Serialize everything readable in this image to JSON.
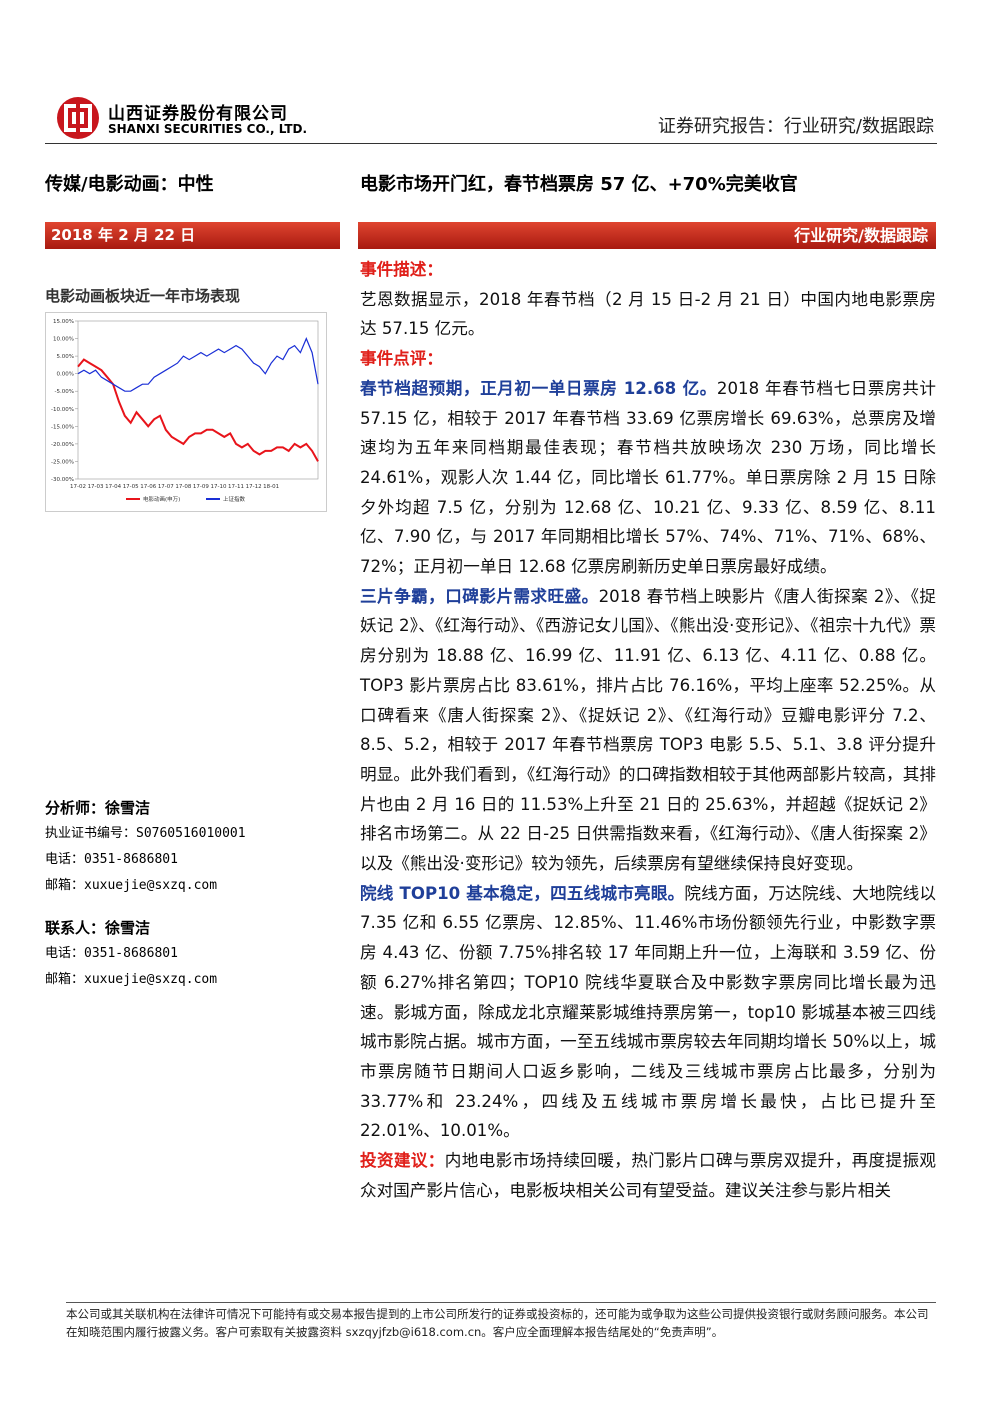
{
  "header": {
    "company_cn": "山西证券股份有限公司",
    "company_en": "SHANXI SECURITIES CO., LTD.",
    "report_type": "证券研究报告：行业研究/数据跟踪"
  },
  "title_row": {
    "sector": "传媒/电影动画：中性",
    "headline": "电影市场开门红，春节档票房 57 亿、+70%完美收官"
  },
  "band": {
    "date": "2018 年 2 月 22 日",
    "tag": "行业研究/数据跟踪"
  },
  "sidebar": {
    "chart_title": "电影动画板块近一年市场表现",
    "analyst": {
      "label": "分析师：徐雪洁",
      "cert": "执业证书编号：S0760516010001",
      "phone": "电话：0351-8686801",
      "email": "邮箱：xuxuejie@sxzq.com"
    },
    "contact": {
      "label": "联系人：徐雪洁",
      "phone": "电话：0351-8686801",
      "email": "邮箱：xuxuejie@sxzq.com"
    }
  },
  "chart_data": {
    "type": "line",
    "categories": [
      "17-02",
      null,
      null,
      "17-03",
      null,
      null,
      "17-04",
      null,
      null,
      "17-05",
      null,
      null,
      "17-06",
      null,
      null,
      "17-07",
      null,
      null,
      "17-08",
      null,
      null,
      "17-09",
      null,
      null,
      "17-10",
      null,
      null,
      "17-11",
      null,
      null,
      "17-12",
      null,
      null,
      "18-01",
      null,
      null,
      null,
      null,
      null,
      null,
      null,
      null
    ],
    "series": [
      {
        "name": "电影动画(申万)",
        "color": "#e8141b",
        "values": [
          2,
          4,
          3,
          2,
          1,
          -1,
          -3,
          -8,
          -12,
          -14,
          -11,
          -13,
          -15,
          -13,
          -12,
          -16,
          -18,
          -19,
          -20,
          -18,
          -17,
          -17,
          -16,
          -16,
          -17,
          -18,
          -17,
          -20,
          -21,
          -20,
          -22,
          -23,
          -22,
          -22,
          -21,
          -21,
          -22,
          -20,
          -21,
          -20,
          -22,
          -25
        ]
      },
      {
        "name": "上证指数",
        "color": "#1a2fd6",
        "values": [
          0,
          1,
          0,
          1,
          -1,
          -2,
          -3,
          -4,
          -5,
          -5,
          -4,
          -3,
          -3,
          -1,
          0,
          1,
          2,
          3,
          5,
          4,
          5,
          6,
          5,
          6,
          7,
          6,
          7,
          8,
          7,
          5,
          3,
          2,
          0,
          3,
          5,
          4,
          7,
          8,
          6,
          10,
          6,
          -3
        ]
      }
    ],
    "ylim": [
      -30,
      15
    ],
    "yticks": [
      {
        "value": -30,
        "label": "-30.00%"
      },
      {
        "value": -25,
        "label": "-25.00%"
      },
      {
        "value": -20,
        "label": "-20.00%"
      },
      {
        "value": -15,
        "label": "-15.00%"
      },
      {
        "value": -10,
        "label": "-10.00%"
      },
      {
        "value": -5,
        "label": "-5.00%"
      },
      {
        "value": 0,
        "label": "0.00%"
      },
      {
        "value": 5,
        "label": "5.00%"
      },
      {
        "value": 10,
        "label": "10.00%"
      },
      {
        "value": 15,
        "label": "15.00%"
      }
    ]
  },
  "body": {
    "event_heading": "事件描述：",
    "event_text": "艺恩数据显示，2018 年春节档（2 月 15 日-2 月 21 日）中国内地电影票房达 57.15 亿元。",
    "review_heading": "事件点评：",
    "paragraphs": [
      {
        "lead": "春节档超预期，正月初一单日票房 12.68 亿。",
        "text": "2018 年春节档七日票房共计 57.15 亿，相较于 2017 年春节档 33.69 亿票房增长 69.63%，总票房及增速均为五年来同档期最佳表现；春节档共放映场次 230 万场，同比增长 24.61%，观影人次 1.44 亿，同比增长 61.77%。单日票房除 2 月 15 日除夕外均超 7.5 亿，分别为 12.68 亿、10.21 亿、9.33 亿、8.59 亿、8.11 亿、7.90 亿，与 2017 年同期相比增长 57%、74%、71%、71%、68%、72%；正月初一单日 12.68 亿票房刷新历史单日票房最好成绩。"
      },
      {
        "lead": "三片争霸，口碑影片需求旺盛。",
        "text": "2018 春节档上映影片《唐人街探案 2》、《捉妖记 2》、《红海行动》、《西游记女儿国》、《熊出没·变形记》、《祖宗十九代》票房分别为 18.88 亿、16.99 亿、11.91 亿、6.13 亿、4.11 亿、0.88 亿。TOP3 影片票房占比 83.61%，排片占比 76.16%，平均上座率 52.25%。从口碑看来《唐人街探案 2》、《捉妖记 2》、《红海行动》豆瓣电影评分 7.2、8.5、5.2，相较于 2017 年春节档票房 TOP3 电影 5.5、5.1、3.8 评分提升明显。此外我们看到，《红海行动》的口碑指数相较于其他两部影片较高，其排片也由 2 月 16 日的 11.53%上升至 21 日的 25.63%，并超越《捉妖记 2》排名市场第二。从 22 日-25 日供需指数来看，《红海行动》、《唐人街探案 2》以及《熊出没·变形记》较为领先，后续票房有望继续保持良好变现。"
      },
      {
        "lead": "院线 TOP10 基本稳定，四五线城市亮眼。",
        "text": "院线方面，万达院线、大地院线以 7.35 亿和 6.55 亿票房、12.85%、11.46%市场份额领先行业，中影数字票房 4.43 亿、份额 7.75%排名较 17 年同期上升一位，上海联和 3.59 亿、份额 6.27%排名第四；TOP10 院线华夏联合及中影数字票房同比增长最为迅速。影城方面，除成龙北京耀莱影城维持票房第一，top10 影城基本被三四线城市影院占据。城市方面，一至五线城市票房较去年同期均增长 50%以上，城市票房随节日期间人口返乡影响，二线及三线城市票房占比最多，分别为 33.77%和 23.24%，四线及五线城市票房增长最快，占比已提升至 22.01%、10.01%。"
      }
    ],
    "advice_lead": "投资建议：",
    "advice_text": "内地电影市场持续回暖，热门影片口碑与票房双提升，再度提振观众对国产影片信心，电影板块相关公司有望受益。建议关注参与影片相关"
  },
  "footer": "本公司或其关联机构在法律许可情况下可能持有或交易本报告提到的上市公司所发行的证券或投资标的，还可能为或争取为这些公司提供投资银行或财务顾问服务。本公司在知晓范围内履行披露义务。客户可索取有关披露资料 sxzqyjfzb@i618.com.cn。客户应全面理解本报告结尾处的“免责声明”。"
}
